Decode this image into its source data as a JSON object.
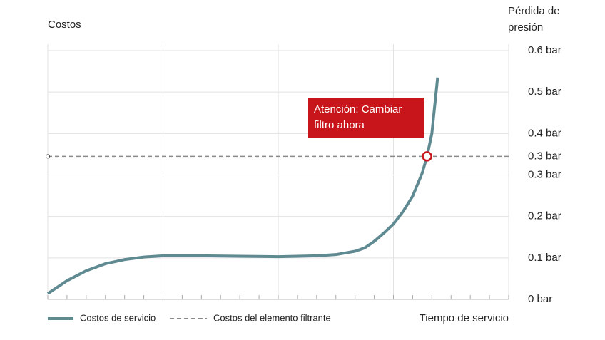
{
  "chart_data": {
    "type": "line",
    "y_label": "Costos",
    "y2_label": "Pérdida de presión",
    "x_label": "Tiempo de servicio",
    "x": [
      0,
      1,
      2,
      3,
      4,
      5,
      6,
      8,
      10,
      12,
      14,
      15,
      16,
      16.5,
      17,
      17.5,
      18,
      18.5,
      19,
      19.5,
      19.75,
      20,
      20.3
    ],
    "xlim": [
      0,
      24
    ],
    "series": [
      {
        "name": "Costos de servicio",
        "color": "#5f8a91",
        "axis": "y2",
        "values": [
          0.014,
          0.045,
          0.069,
          0.086,
          0.096,
          0.102,
          0.105,
          0.105,
          0.104,
          0.103,
          0.105,
          0.108,
          0.116,
          0.124,
          0.14,
          0.16,
          0.182,
          0.212,
          0.249,
          0.305,
          0.345,
          0.4,
          0.535
        ]
      }
    ],
    "threshold": {
      "name": "Costos del elemento filtrante",
      "color": "#8a8a8a",
      "value": 0.345,
      "label": "0.3 bar",
      "label_color": "#f0c000",
      "marker_x": 19.75,
      "marker_color": "#c8151b"
    },
    "annotation": {
      "text": "Atención: Cambiar filtro ahora",
      "color": "#c8151b"
    },
    "y2lim": [
      0,
      0.6
    ],
    "y2ticks": [
      {
        "value": 0,
        "label": "0 bar"
      },
      {
        "value": 0.1,
        "label": "0.1 bar"
      },
      {
        "value": 0.2,
        "label": "0.2 bar"
      },
      {
        "value": 0.3,
        "label": "0.3 bar"
      },
      {
        "value": 0.4,
        "label": "0.4 bar"
      },
      {
        "value": 0.5,
        "label": "0.5 bar"
      },
      {
        "value": 0.6,
        "label": "0.6 bar"
      }
    ],
    "grid": true
  }
}
